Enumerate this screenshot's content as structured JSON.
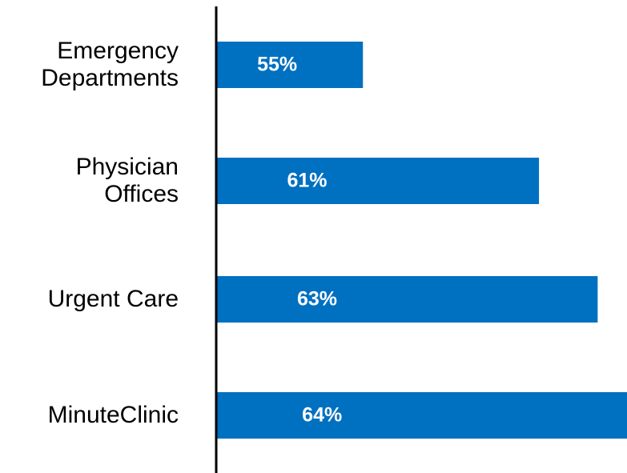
{
  "chart_data": {
    "type": "bar",
    "orientation": "horizontal",
    "categories": [
      "Emergency Departments",
      "Physician Offices",
      "Urgent Care",
      "MinuteClinic"
    ],
    "values": [
      55,
      61,
      63,
      64
    ],
    "value_labels": [
      "55%",
      "61%",
      "63%",
      "64%"
    ],
    "color": "#0070c0",
    "xlim": [
      50,
      64
    ]
  }
}
